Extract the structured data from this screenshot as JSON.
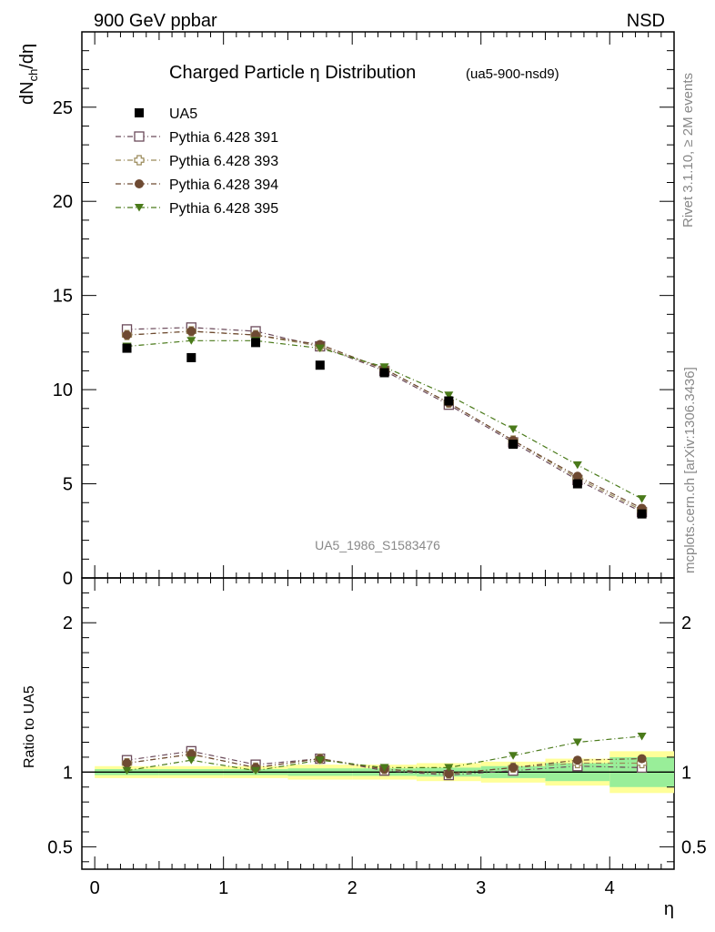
{
  "header": {
    "left": "900 GeV ppbar",
    "right": "NSD"
  },
  "side_labels": {
    "rivet": "Rivet 3.1.10, ≥ 2M events",
    "mcplots": "mcplots.cern.ch [arXiv:1306.3436]"
  },
  "chart_data": {
    "type": "scatter",
    "title": "Charged Particle η Distribution",
    "subtitle": "(ua5-900-nsd9)",
    "analysis_label": "UA5_1986_S1583476",
    "xlabel": "η",
    "ylabel": "dN_ch/dη",
    "ylabel_main": "dN",
    "ylabel_sub": "ch",
    "ylabel_tail": "/dη",
    "ratio_ylabel": "Ratio to UA5",
    "xlim": [
      -0.1,
      4.5
    ],
    "ylim": [
      0,
      29
    ],
    "ratio_ylim": [
      0.35,
      2.3
    ],
    "x_ticks": [
      "0",
      "1",
      "2",
      "3",
      "4"
    ],
    "y_ticks": [
      "0",
      "5",
      "10",
      "15",
      "20",
      "25"
    ],
    "ratio_ticks": [
      "0.5",
      "1",
      "2"
    ],
    "x": [
      0.25,
      0.75,
      1.25,
      1.75,
      2.25,
      2.75,
      3.25,
      3.75,
      4.25
    ],
    "data": {
      "name": "UA5",
      "values": [
        12.2,
        11.7,
        12.5,
        11.3,
        10.9,
        9.4,
        7.1,
        5.0,
        3.4
      ]
    },
    "series": [
      {
        "name": "Pythia 6.428 391",
        "color": "#6b4a5a",
        "marker": "open-square",
        "values": [
          13.2,
          13.3,
          13.1,
          12.3,
          11.0,
          9.2,
          7.2,
          5.2,
          3.5
        ]
      },
      {
        "name": "Pythia 6.428 393",
        "color": "#9a8a5a",
        "marker": "open-cross",
        "values": [
          12.9,
          13.1,
          12.9,
          12.3,
          11.1,
          9.3,
          7.3,
          5.3,
          3.6
        ]
      },
      {
        "name": "Pythia 6.428 394",
        "color": "#6e4a32",
        "marker": "filled-circle",
        "values": [
          12.9,
          13.1,
          12.9,
          12.4,
          11.1,
          9.3,
          7.3,
          5.4,
          3.7
        ]
      },
      {
        "name": "Pythia 6.428 395",
        "color": "#4a7a1a",
        "marker": "filled-triangle",
        "values": [
          12.3,
          12.6,
          12.6,
          12.2,
          11.2,
          9.7,
          7.9,
          6.0,
          4.2
        ]
      }
    ],
    "ratio_series": [
      [
        1.08,
        1.14,
        1.05,
        1.09,
        1.01,
        0.98,
        1.01,
        1.04,
        1.03
      ],
      [
        1.06,
        1.12,
        1.03,
        1.09,
        1.02,
        0.99,
        1.03,
        1.06,
        1.06
      ],
      [
        1.06,
        1.12,
        1.03,
        1.09,
        1.02,
        0.99,
        1.03,
        1.08,
        1.09
      ],
      [
        1.01,
        1.08,
        1.01,
        1.08,
        1.03,
        1.03,
        1.11,
        1.2,
        1.24
      ]
    ],
    "bands": {
      "edges": [
        0,
        0.5,
        1.0,
        1.5,
        2.0,
        2.5,
        3.0,
        3.5,
        4.0,
        4.5
      ],
      "yellow_half_width": [
        0.04,
        0.04,
        0.04,
        0.05,
        0.05,
        0.06,
        0.07,
        0.09,
        0.14
      ],
      "green_half_width": [
        0.02,
        0.02,
        0.02,
        0.025,
        0.025,
        0.03,
        0.04,
        0.06,
        0.1
      ],
      "yellow_color": "#ffff99",
      "green_color": "#99ee99"
    }
  }
}
